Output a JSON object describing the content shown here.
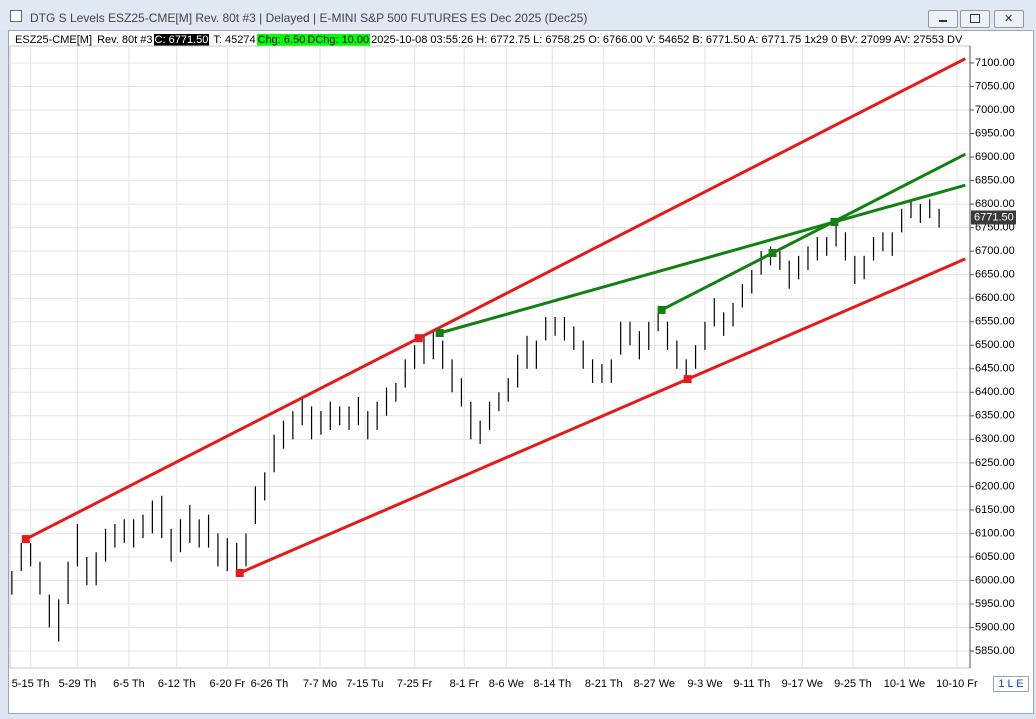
{
  "header": {
    "window_title": "DTG S Levels ESZ25-CME[M]  Rev. 80t #3 | Delayed | E-MINI S&P 500 FUTURES ES Dec 2025 (Dec25)",
    "symbol": "ESZ25-CME[M]",
    "rev": "Rev. 80t #3",
    "close": "C: 6771.50",
    "trades": "T: 45274",
    "chg": "Chg: 6.50",
    "dchg": "DChg: 10.00",
    "details": "2025-10-08 03:55:26 H: 6772.75 L: 6758.25 O: 6766.00 V: 54652 B: 6771.50 A: 6771.75 1x29 0 BV: 27099 AV: 27553 DV",
    "status": "1 L E"
  },
  "chart_data": {
    "type": "ohlc",
    "color": "#000000",
    "grid": true,
    "xlim": [
      -0.2,
      102.3
    ],
    "ylim": [
      5814,
      7136
    ],
    "high": [
      6020,
      6080,
      6080,
      6040,
      5970,
      5960,
      6040,
      6120,
      6050,
      6060,
      6110,
      6120,
      6130,
      6130,
      6140,
      6170,
      6180,
      6110,
      6130,
      6160,
      6130,
      6140,
      6100,
      6090,
      6080,
      6100,
      6200,
      6230,
      6310,
      6340,
      6360,
      6390,
      6370,
      6360,
      6380,
      6370,
      6370,
      6390,
      6360,
      6380,
      6410,
      6420,
      6470,
      6500,
      6520,
      6530,
      6510,
      6470,
      6430,
      6380,
      6340,
      6380,
      6400,
      6430,
      6480,
      6520,
      6510,
      6560,
      6560,
      6560,
      6540,
      6510,
      6470,
      6460,
      6470,
      6550,
      6550,
      6530,
      6550,
      6570,
      6550,
      6510,
      6470,
      6500,
      6550,
      6600,
      6570,
      6590,
      6630,
      6660,
      6700,
      6710,
      6700,
      6680,
      6690,
      6710,
      6730,
      6730,
      6770,
      6740,
      6690,
      6690,
      6730,
      6740,
      6740,
      6790,
      6810,
      6800,
      6810,
      6790
    ],
    "low": [
      5970,
      6020,
      6030,
      5970,
      5900,
      5870,
      5950,
      6030,
      5990,
      5990,
      6040,
      6070,
      6080,
      6070,
      6090,
      6100,
      6090,
      6040,
      6060,
      6080,
      6070,
      6070,
      6030,
      6020,
      6020,
      6030,
      6120,
      6170,
      6230,
      6280,
      6300,
      6330,
      6300,
      6310,
      6320,
      6330,
      6320,
      6330,
      6300,
      6320,
      6350,
      6380,
      6410,
      6450,
      6460,
      6470,
      6450,
      6400,
      6370,
      6300,
      6290,
      6320,
      6360,
      6380,
      6410,
      6450,
      6450,
      6510,
      6520,
      6510,
      6490,
      6450,
      6420,
      6420,
      6420,
      6480,
      6500,
      6470,
      6490,
      6530,
      6490,
      6450,
      6430,
      6450,
      6490,
      6540,
      6520,
      6540,
      6580,
      6610,
      6650,
      6670,
      6660,
      6620,
      6640,
      6660,
      6680,
      6690,
      6710,
      6680,
      6630,
      6640,
      6680,
      6700,
      6690,
      6740,
      6770,
      6760,
      6770,
      6750
    ],
    "xticks": [
      {
        "value": 2,
        "label": "5-15 Th"
      },
      {
        "value": 7,
        "label": "5-29 Th"
      },
      {
        "value": 12.5,
        "label": "6-5 Th"
      },
      {
        "value": 17.6,
        "label": "6-12 Th"
      },
      {
        "value": 23,
        "label": "6-20 Fr"
      },
      {
        "value": 27.5,
        "label": "6-26 Th"
      },
      {
        "value": 32.9,
        "label": "7-7 Mo"
      },
      {
        "value": 37.7,
        "label": "7-15 Tu"
      },
      {
        "value": 43,
        "label": "7-25 Fr"
      },
      {
        "value": 48.3,
        "label": "8-1 Fr"
      },
      {
        "value": 52.8,
        "label": "8-6 We"
      },
      {
        "value": 57.7,
        "label": "8-14 Th"
      },
      {
        "value": 63.2,
        "label": "8-21 Th"
      },
      {
        "value": 68.6,
        "label": "8-27 We"
      },
      {
        "value": 74,
        "label": "9-3 We"
      },
      {
        "value": 79,
        "label": "9-11 Th"
      },
      {
        "value": 84.4,
        "label": "9-17 We"
      },
      {
        "value": 89.8,
        "label": "9-25 Th"
      },
      {
        "value": 95.3,
        "label": "10-1 We"
      },
      {
        "value": 100.9,
        "label": "10-10 Fr"
      }
    ],
    "yticks": [
      {
        "value": 5850,
        "label": "5850.00"
      },
      {
        "value": 5900,
        "label": "5900.00"
      },
      {
        "value": 5950,
        "label": "5950.00"
      },
      {
        "value": 6000,
        "label": "6000.00"
      },
      {
        "value": 6050,
        "label": "6050.00"
      },
      {
        "value": 6100,
        "label": "6100.00"
      },
      {
        "value": 6150,
        "label": "6150.00"
      },
      {
        "value": 6200,
        "label": "6200.00"
      },
      {
        "value": 6250,
        "label": "6250.00"
      },
      {
        "value": 6300,
        "label": "6300.00"
      },
      {
        "value": 6350,
        "label": "6350.00"
      },
      {
        "value": 6400,
        "label": "6400.00"
      },
      {
        "value": 6450,
        "label": "6450.00"
      },
      {
        "value": 6500,
        "label": "6500.00"
      },
      {
        "value": 6550,
        "label": "6550.00"
      },
      {
        "value": 6600,
        "label": "6600.00"
      },
      {
        "value": 6650,
        "label": "6650.00"
      },
      {
        "value": 6700,
        "label": "6700.00"
      },
      {
        "value": 6750,
        "label": "6750.00"
      },
      {
        "value": 6800,
        "label": "6800.00"
      },
      {
        "value": 6850,
        "label": "6850.00"
      },
      {
        "value": 6900,
        "label": "6900.00"
      },
      {
        "value": 6950,
        "label": "6950.00"
      },
      {
        "value": 7000,
        "label": "7000.00"
      },
      {
        "value": 7050,
        "label": "7050.00"
      },
      {
        "value": 7100,
        "label": "7100.00"
      }
    ],
    "last_price": {
      "value": 6771.5,
      "label": "6771.50"
    },
    "extend": "right",
    "lines": [
      {
        "color": "#e31b1b",
        "points": [
          [
            1.49,
            6088
          ],
          [
            43.44,
            6515
          ]
        ]
      },
      {
        "color": "#e31b1b",
        "points": [
          [
            24.33,
            6016
          ],
          [
            72.15,
            6428
          ]
        ]
      },
      {
        "color": "#128012",
        "points": [
          [
            45.68,
            6526
          ],
          [
            87.83,
            6762
          ]
        ]
      },
      {
        "color": "#128012",
        "points": [
          [
            69.37,
            6575
          ],
          [
            81.22,
            6696
          ]
        ]
      }
    ]
  }
}
